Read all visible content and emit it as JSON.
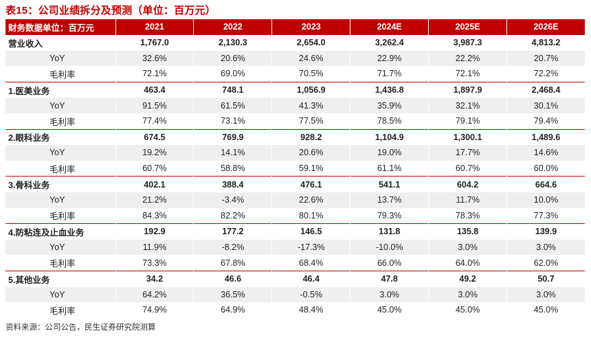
{
  "title": "表15：公司业绩拆分及预测（单位：百万元）",
  "header": [
    "财务数据单位：百万元",
    "2021",
    "2022",
    "2023",
    "2024E",
    "2025E",
    "2026E"
  ],
  "rows": [
    {
      "label": "营业收入",
      "values": [
        "1,767.0",
        "2,130.3",
        "2,654.0",
        "3,262.4",
        "3,987.3",
        "4,813.2"
      ],
      "bold": true
    },
    {
      "label": "YoY",
      "values": [
        "32.6%",
        "20.6%",
        "24.6%",
        "22.9%",
        "22.2%",
        "20.7%"
      ]
    },
    {
      "label": "毛利率",
      "values": [
        "72.1%",
        "69.0%",
        "70.5%",
        "71.7%",
        "72.1%",
        "72.2%"
      ]
    },
    {
      "label": "1.医美业务",
      "values": [
        "463.4",
        "748.1",
        "1,056.9",
        "1,436.8",
        "1,897.9",
        "2,468.4"
      ],
      "bold": true
    },
    {
      "label": "YoY",
      "values": [
        "91.5%",
        "61.5%",
        "41.3%",
        "35.9%",
        "32.1%",
        "30.1%"
      ]
    },
    {
      "label": "毛利率",
      "values": [
        "77.4%",
        "73.1%",
        "77.5%",
        "78.5%",
        "79.1%",
        "79.4%"
      ]
    },
    {
      "label": "2.眼科业务",
      "values": [
        "674.5",
        "769.9",
        "928.2",
        "1,104.9",
        "1,300.1",
        "1,489.6"
      ],
      "bold": true
    },
    {
      "label": "YoY",
      "values": [
        "19.2%",
        "14.1%",
        "20.6%",
        "19.0%",
        "17.7%",
        "14.6%"
      ]
    },
    {
      "label": "毛利率",
      "values": [
        "60.7%",
        "58.8%",
        "59.1%",
        "61.1%",
        "60.7%",
        "60.0%"
      ]
    },
    {
      "label": "3.骨科业务",
      "values": [
        "402.1",
        "388.4",
        "476.1",
        "541.1",
        "604.2",
        "664.6"
      ],
      "bold": true
    },
    {
      "label": "YoY",
      "values": [
        "21.2%",
        "-3.4%",
        "22.6%",
        "13.7%",
        "11.7%",
        "10.0%"
      ]
    },
    {
      "label": "毛利率",
      "values": [
        "84.3%",
        "82.2%",
        "80.1%",
        "79.3%",
        "78.3%",
        "77.3%"
      ]
    },
    {
      "label": "4.防粘连及止血业务",
      "values": [
        "192.9",
        "177.2",
        "146.5",
        "131.8",
        "135.8",
        "139.9"
      ],
      "bold": true
    },
    {
      "label": "YoY",
      "values": [
        "11.9%",
        "-8.2%",
        "-17.3%",
        "-10.0%",
        "3.0%",
        "3.0%"
      ]
    },
    {
      "label": "毛利率",
      "values": [
        "73.3%",
        "67.8%",
        "68.4%",
        "66.0%",
        "64.0%",
        "62.0%"
      ]
    },
    {
      "label": "5.其他业务",
      "values": [
        "34.2",
        "46.6",
        "46.4",
        "47.8",
        "49.2",
        "50.7"
      ],
      "bold": true
    },
    {
      "label": "YoY",
      "values": [
        "64.2%",
        "36.5%",
        "-0.5%",
        "3.0%",
        "3.0%",
        "3.0%"
      ]
    },
    {
      "label": "毛利率",
      "values": [
        "74.9%",
        "64.9%",
        "48.4%",
        "45.0%",
        "45.0%",
        "45.0%"
      ]
    }
  ],
  "source": "资料来源：公司公告，民生证券研究院测算"
}
